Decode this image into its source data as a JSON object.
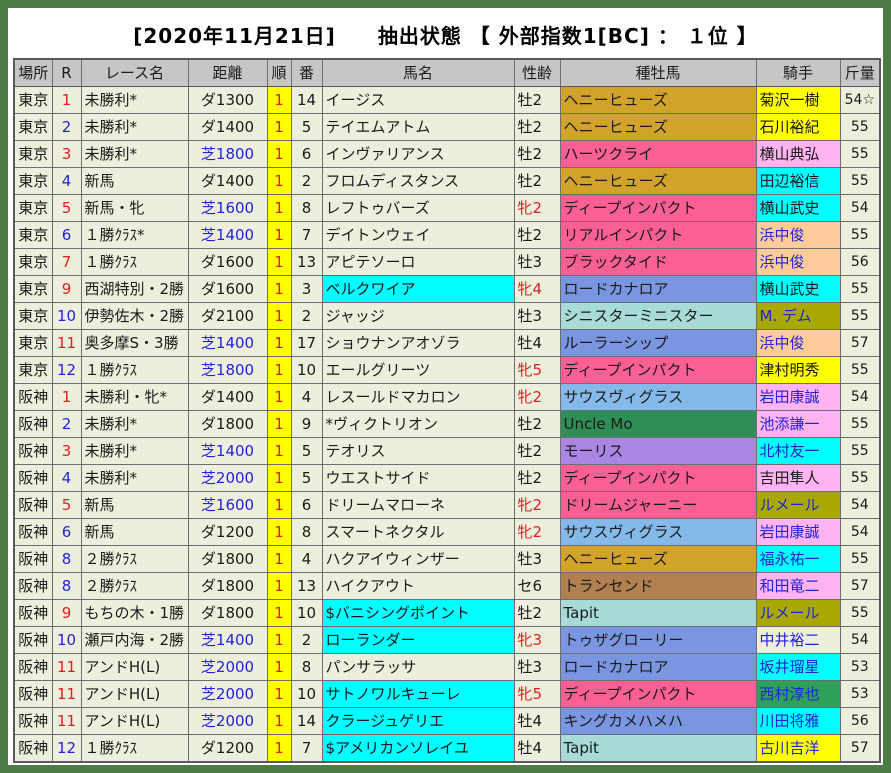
{
  "window": {
    "title": "[2020年11月21日]　　抽出状態 【 外部指数1[BC] ： １位 】"
  },
  "palette": {
    "frame_green": "#4d7b46",
    "cell_beige": "#eeeedd",
    "header_gray": "#c6c6c6",
    "grid_line": "#6e6e6e",
    "rank_yellow": "#ffff00",
    "red_text": "#e02020",
    "blue_text": "#2222dd",
    "highlight_cyan": "#00ffff",
    "sire_colors": {
      "gold": "#d2a32a",
      "pink": "#fa6096",
      "periwinkle": "#7b96e0",
      "pale_cyan": "#a8dbd8",
      "light_blue": "#85b9ea",
      "green": "#2f8e57",
      "purple": "#a886e2",
      "brown": "#b08050"
    },
    "jockey_colors": {
      "yellow": "#ffff00",
      "light_pink": "#ffb3f0",
      "cyan": "#00ffff",
      "peach": "#ffcc99",
      "olive": "#a8a800",
      "green": "#2fa05a"
    }
  },
  "table": {
    "columns": [
      {
        "key": "place",
        "label": "場所"
      },
      {
        "key": "race-number",
        "label": "R"
      },
      {
        "key": "race-name",
        "label": "レース名"
      },
      {
        "key": "distance",
        "label": "距離"
      },
      {
        "key": "rank",
        "label": "順"
      },
      {
        "key": "horse-number",
        "label": "番"
      },
      {
        "key": "horse-name",
        "label": "馬名"
      },
      {
        "key": "sex-age",
        "label": "性齢"
      },
      {
        "key": "sire",
        "label": "種牡馬"
      },
      {
        "key": "jockey",
        "label": "騎手"
      },
      {
        "key": "weight",
        "label": "斤量"
      }
    ],
    "rows": [
      {
        "place": "東京",
        "r": "1",
        "r_color": "red",
        "race": "未勝利*",
        "dist": "ダ1300",
        "surface": "dirt",
        "rank": "1",
        "num": "14",
        "horse": "イージス",
        "horse_highlight": false,
        "sex_age": "牡2",
        "sex_color": "black",
        "sire": "ヘニーヒューズ",
        "sire_color": "gold",
        "jockey": "菊沢一樹",
        "jockey_bg": "yellow",
        "jockey_text": "black",
        "weight": "54☆"
      },
      {
        "place": "東京",
        "r": "2",
        "r_color": "blue",
        "race": "未勝利*",
        "dist": "ダ1400",
        "surface": "dirt",
        "rank": "1",
        "num": "5",
        "horse": "テイエムアトム",
        "horse_highlight": false,
        "sex_age": "牡2",
        "sex_color": "black",
        "sire": "ヘニーヒューズ",
        "sire_color": "gold",
        "jockey": "石川裕紀",
        "jockey_bg": "yellow",
        "jockey_text": "black",
        "weight": "55"
      },
      {
        "place": "東京",
        "r": "3",
        "r_color": "red",
        "race": "未勝利*",
        "dist": "芝1800",
        "surface": "turf",
        "rank": "1",
        "num": "6",
        "horse": "インヴァリアンス",
        "horse_highlight": false,
        "sex_age": "牡2",
        "sex_color": "black",
        "sire": "ハーツクライ",
        "sire_color": "pink",
        "jockey": "横山典弘",
        "jockey_bg": "light_pink",
        "jockey_text": "black",
        "weight": "55"
      },
      {
        "place": "東京",
        "r": "4",
        "r_color": "blue",
        "race": "新馬",
        "dist": "ダ1400",
        "surface": "dirt",
        "rank": "1",
        "num": "2",
        "horse": "フロムディスタンス",
        "horse_highlight": false,
        "sex_age": "牡2",
        "sex_color": "black",
        "sire": "ヘニーヒューズ",
        "sire_color": "gold",
        "jockey": "田辺裕信",
        "jockey_bg": "cyan",
        "jockey_text": "black",
        "weight": "55"
      },
      {
        "place": "東京",
        "r": "5",
        "r_color": "red",
        "race": "新馬・牝",
        "dist": "芝1600",
        "surface": "turf",
        "rank": "1",
        "num": "8",
        "horse": "レフトゥバーズ",
        "horse_highlight": false,
        "sex_age": "牝2",
        "sex_color": "red",
        "sire": "ディープインパクト",
        "sire_color": "pink",
        "jockey": "横山武史",
        "jockey_bg": "cyan",
        "jockey_text": "black",
        "weight": "54"
      },
      {
        "place": "東京",
        "r": "6",
        "r_color": "blue",
        "race": "１勝ｸﾗｽ*",
        "dist": "芝1400",
        "surface": "turf",
        "rank": "1",
        "num": "7",
        "horse": "デイトンウェイ",
        "horse_highlight": false,
        "sex_age": "牡2",
        "sex_color": "black",
        "sire": "リアルインパクト",
        "sire_color": "pink",
        "jockey": "浜中俊",
        "jockey_bg": "peach",
        "jockey_text": "blue",
        "weight": "55"
      },
      {
        "place": "東京",
        "r": "7",
        "r_color": "red",
        "race": "１勝ｸﾗｽ",
        "dist": "ダ1600",
        "surface": "dirt",
        "rank": "1",
        "num": "13",
        "horse": "アピテソーロ",
        "horse_highlight": false,
        "sex_age": "牡3",
        "sex_color": "black",
        "sire": "ブラックタイド",
        "sire_color": "pink",
        "jockey": "浜中俊",
        "jockey_bg": "peach",
        "jockey_text": "blue",
        "weight": "56"
      },
      {
        "place": "東京",
        "r": "9",
        "r_color": "red",
        "race": "西湖特別・2勝",
        "dist": "ダ1600",
        "surface": "dirt",
        "rank": "1",
        "num": "3",
        "horse": "ベルクワイア",
        "horse_highlight": true,
        "sex_age": "牝4",
        "sex_color": "red",
        "sire": "ロードカナロア",
        "sire_color": "periwinkle",
        "jockey": "横山武史",
        "jockey_bg": "cyan",
        "jockey_text": "black",
        "weight": "55"
      },
      {
        "place": "東京",
        "r": "10",
        "r_color": "blue",
        "race": "伊勢佐木・2勝",
        "dist": "ダ2100",
        "surface": "dirt",
        "rank": "1",
        "num": "2",
        "horse": "ジャッジ",
        "horse_highlight": false,
        "sex_age": "牡3",
        "sex_color": "black",
        "sire": "シニスターミニスター",
        "sire_color": "pale_cyan",
        "jockey": "M. デム",
        "jockey_bg": "olive",
        "jockey_text": "blue",
        "weight": "55"
      },
      {
        "place": "東京",
        "r": "11",
        "r_color": "red",
        "race": "奥多摩S・3勝",
        "dist": "芝1400",
        "surface": "turf",
        "rank": "1",
        "num": "17",
        "horse": "ショウナンアオゾラ",
        "horse_highlight": false,
        "sex_age": "牡4",
        "sex_color": "black",
        "sire": "ルーラーシップ",
        "sire_color": "periwinkle",
        "jockey": "浜中俊",
        "jockey_bg": "peach",
        "jockey_text": "blue",
        "weight": "57"
      },
      {
        "place": "東京",
        "r": "12",
        "r_color": "blue",
        "race": "１勝ｸﾗｽ",
        "dist": "芝1800",
        "surface": "turf",
        "rank": "1",
        "num": "10",
        "horse": "エールグリーツ",
        "horse_highlight": false,
        "sex_age": "牝5",
        "sex_color": "red",
        "sire": "ディープインパクト",
        "sire_color": "pink",
        "jockey": "津村明秀",
        "jockey_bg": "yellow",
        "jockey_text": "black",
        "weight": "55"
      },
      {
        "place": "阪神",
        "r": "1",
        "r_color": "red",
        "race": "未勝利・牝*",
        "dist": "ダ1400",
        "surface": "dirt",
        "rank": "1",
        "num": "4",
        "horse": "レスールドマカロン",
        "horse_highlight": false,
        "sex_age": "牝2",
        "sex_color": "red",
        "sire": "サウスヴィグラス",
        "sire_color": "light_blue",
        "jockey": "岩田康誠",
        "jockey_bg": "light_pink",
        "jockey_text": "blue",
        "weight": "54"
      },
      {
        "place": "阪神",
        "r": "2",
        "r_color": "blue",
        "race": "未勝利*",
        "dist": "ダ1800",
        "surface": "dirt",
        "rank": "1",
        "num": "9",
        "horse": "*ヴィクトリオン",
        "horse_highlight": false,
        "sex_age": "牡2",
        "sex_color": "black",
        "sire": "Uncle Mo",
        "sire_color": "green",
        "jockey": "池添謙一",
        "jockey_bg": "light_pink",
        "jockey_text": "blue",
        "weight": "55"
      },
      {
        "place": "阪神",
        "r": "3",
        "r_color": "red",
        "race": "未勝利*",
        "dist": "芝1400",
        "surface": "turf",
        "rank": "1",
        "num": "5",
        "horse": "テオリス",
        "horse_highlight": false,
        "sex_age": "牡2",
        "sex_color": "black",
        "sire": "モーリス",
        "sire_color": "purple",
        "jockey": "北村友一",
        "jockey_bg": "cyan",
        "jockey_text": "blue",
        "weight": "55"
      },
      {
        "place": "阪神",
        "r": "4",
        "r_color": "blue",
        "race": "未勝利*",
        "dist": "芝2000",
        "surface": "turf",
        "rank": "1",
        "num": "5",
        "horse": "ウエストサイド",
        "horse_highlight": false,
        "sex_age": "牡2",
        "sex_color": "black",
        "sire": "ディープインパクト",
        "sire_color": "pink",
        "jockey": "吉田隼人",
        "jockey_bg": "light_pink",
        "jockey_text": "black",
        "weight": "55"
      },
      {
        "place": "阪神",
        "r": "5",
        "r_color": "red",
        "race": "新馬",
        "dist": "芝1600",
        "surface": "turf",
        "rank": "1",
        "num": "6",
        "horse": "ドリームマローネ",
        "horse_highlight": false,
        "sex_age": "牝2",
        "sex_color": "red",
        "sire": "ドリームジャーニー",
        "sire_color": "pink",
        "jockey": "ルメール",
        "jockey_bg": "olive",
        "jockey_text": "blue",
        "weight": "54"
      },
      {
        "place": "阪神",
        "r": "6",
        "r_color": "blue",
        "race": "新馬",
        "dist": "ダ1200",
        "surface": "dirt",
        "rank": "1",
        "num": "8",
        "horse": "スマートネクタル",
        "horse_highlight": false,
        "sex_age": "牝2",
        "sex_color": "red",
        "sire": "サウスヴィグラス",
        "sire_color": "light_blue",
        "jockey": "岩田康誠",
        "jockey_bg": "light_pink",
        "jockey_text": "blue",
        "weight": "54"
      },
      {
        "place": "阪神",
        "r": "8",
        "r_color": "blue",
        "race": "２勝ｸﾗｽ",
        "dist": "ダ1800",
        "surface": "dirt",
        "rank": "1",
        "num": "4",
        "horse": "ハクアイウィンザー",
        "horse_highlight": false,
        "sex_age": "牡3",
        "sex_color": "black",
        "sire": "ヘニーヒューズ",
        "sire_color": "gold",
        "jockey": "福永祐一",
        "jockey_bg": "cyan",
        "jockey_text": "blue",
        "weight": "55"
      },
      {
        "place": "阪神",
        "r": "8",
        "r_color": "blue",
        "race": "２勝ｸﾗｽ",
        "dist": "ダ1800",
        "surface": "dirt",
        "rank": "1",
        "num": "13",
        "horse": "ハイクアウト",
        "horse_highlight": false,
        "sex_age": "セ6",
        "sex_color": "black",
        "sire": "トランセンド",
        "sire_color": "brown",
        "jockey": "和田竜二",
        "jockey_bg": "light_pink",
        "jockey_text": "blue",
        "weight": "57"
      },
      {
        "place": "阪神",
        "r": "9",
        "r_color": "red",
        "race": "もちの木・1勝",
        "dist": "ダ1800",
        "surface": "dirt",
        "rank": "1",
        "num": "10",
        "horse": "$バニシングポイント",
        "horse_highlight": true,
        "sex_age": "牡2",
        "sex_color": "black",
        "sire": "Tapit",
        "sire_color": "pale_cyan",
        "jockey": "ルメール",
        "jockey_bg": "olive",
        "jockey_text": "blue",
        "weight": "55"
      },
      {
        "place": "阪神",
        "r": "10",
        "r_color": "blue",
        "race": "瀬戸内海・2勝",
        "dist": "芝1400",
        "surface": "turf",
        "rank": "1",
        "num": "2",
        "horse": "ローランダー",
        "horse_highlight": true,
        "sex_age": "牝3",
        "sex_color": "red",
        "sire": "トゥザグローリー",
        "sire_color": "periwinkle",
        "jockey": "中井裕二",
        "jockey_bg": "none",
        "jockey_text": "blue",
        "weight": "54"
      },
      {
        "place": "阪神",
        "r": "11",
        "r_color": "red",
        "race": "アンドH(L)",
        "dist": "芝2000",
        "surface": "turf",
        "rank": "1",
        "num": "8",
        "horse": "パンサラッサ",
        "horse_highlight": false,
        "sex_age": "牡3",
        "sex_color": "black",
        "sire": "ロードカナロア",
        "sire_color": "periwinkle",
        "jockey": "坂井瑠星",
        "jockey_bg": "cyan",
        "jockey_text": "blue",
        "weight": "53"
      },
      {
        "place": "阪神",
        "r": "11",
        "r_color": "red",
        "race": "アンドH(L)",
        "dist": "芝2000",
        "surface": "turf",
        "rank": "1",
        "num": "10",
        "horse": "サトノワルキューレ",
        "horse_highlight": true,
        "sex_age": "牝5",
        "sex_color": "red",
        "sire": "ディープインパクト",
        "sire_color": "pink",
        "jockey": "西村淳也",
        "jockey_bg": "green",
        "jockey_text": "blue",
        "weight": "53"
      },
      {
        "place": "阪神",
        "r": "11",
        "r_color": "red",
        "race": "アンドH(L)",
        "dist": "芝2000",
        "surface": "turf",
        "rank": "1",
        "num": "14",
        "horse": "クラージュゲリエ",
        "horse_highlight": true,
        "sex_age": "牡4",
        "sex_color": "black",
        "sire": "キングカメハメハ",
        "sire_color": "periwinkle",
        "jockey": "川田将雅",
        "jockey_bg": "cyan",
        "jockey_text": "blue",
        "weight": "56"
      },
      {
        "place": "阪神",
        "r": "12",
        "r_color": "blue",
        "race": "１勝ｸﾗｽ",
        "dist": "ダ1200",
        "surface": "dirt",
        "rank": "1",
        "num": "7",
        "horse": "$アメリカンソレイユ",
        "horse_highlight": true,
        "sex_age": "牡4",
        "sex_color": "black",
        "sire": "Tapit",
        "sire_color": "pale_cyan",
        "jockey": "古川吉洋",
        "jockey_bg": "yellow",
        "jockey_text": "blue",
        "weight": "57"
      }
    ]
  }
}
